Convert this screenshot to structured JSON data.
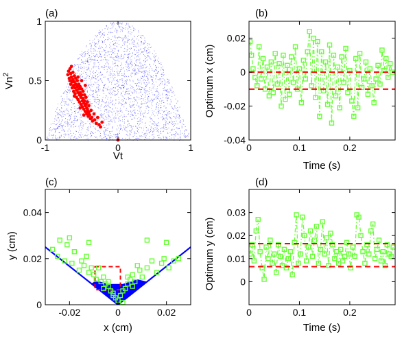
{
  "colors": {
    "red": "#ff0000",
    "green": "#66ff33",
    "blue": "#0000ff",
    "axis": "#000000"
  },
  "panels": {
    "a": {
      "label": "(a)",
      "xlabel": "Vt",
      "ylabel": "Vn",
      "ylabel_sup": "2"
    },
    "b": {
      "label": "(b)",
      "xlabel": "Time (s)",
      "ylabel": "Optimum x (cm)"
    },
    "c": {
      "label": "(c)",
      "xlabel": "x (cm)",
      "ylabel": "y (cm)"
    },
    "d": {
      "label": "(d)",
      "xlabel": "Time (s)",
      "ylabel": "Optimum y (cm)"
    }
  },
  "chart_data": [
    {
      "id": "a",
      "type": "scatter",
      "title": "(a)",
      "xlabel": "Vt",
      "ylabel": "Vn^2",
      "xlim": [
        -1,
        1
      ],
      "ylim": [
        0,
        1
      ],
      "xticks": [
        -1,
        0,
        1
      ],
      "yticks": [
        0,
        0.5,
        1
      ],
      "xticklabels": [
        "-1",
        "0",
        "1"
      ],
      "yticklabels": [
        "0",
        "0.5",
        "1"
      ],
      "background_region": "blue dots filling the area under the curve y = 1 - x^2",
      "series": [
        {
          "color": "red",
          "points": [
            [
              -0.69,
              0.55
            ],
            [
              -0.68,
              0.58
            ],
            [
              -0.67,
              0.52
            ],
            [
              -0.66,
              0.6
            ],
            [
              -0.66,
              0.5
            ],
            [
              -0.65,
              0.56
            ],
            [
              -0.65,
              0.47
            ],
            [
              -0.64,
              0.53
            ],
            [
              -0.64,
              0.62
            ],
            [
              -0.63,
              0.49
            ],
            [
              -0.63,
              0.44
            ],
            [
              -0.62,
              0.57
            ],
            [
              -0.62,
              0.51
            ],
            [
              -0.61,
              0.46
            ],
            [
              -0.61,
              0.41
            ],
            [
              -0.6,
              0.54
            ],
            [
              -0.6,
              0.49
            ],
            [
              -0.59,
              0.44
            ],
            [
              -0.59,
              0.39
            ],
            [
              -0.58,
              0.52
            ],
            [
              -0.58,
              0.47
            ],
            [
              -0.57,
              0.42
            ],
            [
              -0.57,
              0.36
            ],
            [
              -0.56,
              0.5
            ],
            [
              -0.56,
              0.45
            ],
            [
              -0.55,
              0.4
            ],
            [
              -0.55,
              0.34
            ],
            [
              -0.54,
              0.47
            ],
            [
              -0.54,
              0.43
            ],
            [
              -0.53,
              0.38
            ],
            [
              -0.53,
              0.32
            ],
            [
              -0.52,
              0.45
            ],
            [
              -0.52,
              0.4
            ],
            [
              -0.51,
              0.36
            ],
            [
              -0.51,
              0.3
            ],
            [
              -0.5,
              0.43
            ],
            [
              -0.5,
              0.38
            ],
            [
              -0.49,
              0.33
            ],
            [
              -0.49,
              0.28
            ],
            [
              -0.48,
              0.41
            ],
            [
              -0.48,
              0.35
            ],
            [
              -0.47,
              0.31
            ],
            [
              -0.47,
              0.26
            ],
            [
              -0.46,
              0.38
            ],
            [
              -0.46,
              0.33
            ],
            [
              -0.45,
              0.29
            ],
            [
              -0.45,
              0.24
            ],
            [
              -0.44,
              0.36
            ],
            [
              -0.44,
              0.3
            ],
            [
              -0.43,
              0.27
            ],
            [
              -0.43,
              0.22
            ],
            [
              -0.42,
              0.32
            ],
            [
              -0.42,
              0.26
            ],
            [
              -0.41,
              0.24
            ],
            [
              -0.41,
              0.2
            ],
            [
              -0.4,
              0.29
            ],
            [
              -0.4,
              0.23
            ],
            [
              -0.39,
              0.21
            ],
            [
              -0.38,
              0.18
            ],
            [
              -0.37,
              0.25
            ],
            [
              -0.36,
              0.19
            ],
            [
              -0.35,
              0.16
            ],
            [
              -0.33,
              0.22
            ],
            [
              -0.32,
              0.17
            ],
            [
              -0.3,
              0.14
            ],
            [
              -0.28,
              0.19
            ],
            [
              -0.26,
              0.13
            ],
            [
              -0.24,
              0.11
            ],
            [
              -0.22,
              0.15
            ],
            [
              -0.55,
              0.53
            ],
            [
              -0.5,
              0.5
            ],
            [
              -0.45,
              0.46
            ],
            [
              -0.6,
              0.37
            ],
            [
              -0.52,
              0.27
            ],
            [
              -0.47,
              0.21
            ],
            [
              0.0,
              0.0
            ]
          ]
        }
      ]
    },
    {
      "id": "b",
      "type": "line",
      "title": "(b)",
      "xlabel": "Time (s)",
      "ylabel": "Optimum x (cm)",
      "xlim": [
        0,
        0.29
      ],
      "ylim": [
        -0.04,
        0.03
      ],
      "xticks": [
        0,
        0.1,
        0.2
      ],
      "yticks": [
        -0.04,
        -0.02,
        0,
        0.02
      ],
      "xticklabels": [
        "0",
        "0.1",
        "0.2"
      ],
      "yticklabels": [
        "-0.04",
        "-0.02",
        "0",
        "0.02"
      ],
      "hlines": [
        0.0,
        -0.01
      ],
      "series": [
        {
          "color": "green",
          "style": "dash-dot with square markers",
          "x": [
            0.002,
            0.005,
            0.008,
            0.012,
            0.016,
            0.02,
            0.024,
            0.028,
            0.032,
            0.036,
            0.04,
            0.044,
            0.048,
            0.052,
            0.056,
            0.06,
            0.064,
            0.068,
            0.072,
            0.076,
            0.08,
            0.084,
            0.088,
            0.092,
            0.096,
            0.1,
            0.104,
            0.108,
            0.112,
            0.116,
            0.12,
            0.124,
            0.128,
            0.132,
            0.136,
            0.14,
            0.144,
            0.148,
            0.152,
            0.156,
            0.16,
            0.164,
            0.168,
            0.172,
            0.176,
            0.18,
            0.184,
            0.188,
            0.192,
            0.196,
            0.2,
            0.204,
            0.208,
            0.212,
            0.216,
            0.22,
            0.224,
            0.228,
            0.232,
            0.236,
            0.24,
            0.244,
            0.248,
            0.252,
            0.256,
            0.26,
            0.264,
            0.268,
            0.272,
            0.276,
            0.28,
            0.284
          ],
          "y": [
            0.018,
            0.01,
            0.002,
            -0.003,
            -0.008,
            0.015,
            -0.004,
            0.008,
            -0.01,
            0.003,
            -0.014,
            0.006,
            -0.012,
            0.011,
            -0.007,
            0.005,
            -0.02,
            0.01,
            -0.016,
            0.004,
            -0.013,
            0.009,
            -0.006,
            0.015,
            -0.01,
            0.002,
            -0.018,
            0.007,
            -0.004,
            0.012,
            0.024,
            -0.008,
            0.02,
            -0.015,
            0.018,
            -0.026,
            0.012,
            -0.011,
            0.006,
            -0.019,
            0.016,
            -0.03,
            0.01,
            -0.014,
            0.003,
            -0.021,
            0.009,
            -0.006,
            0.014,
            -0.012,
            0.001,
            -0.017,
            -0.026,
            0.008,
            -0.021,
            0.011,
            -0.009,
            -0.004,
            0.006,
            -0.013,
            0.002,
            -0.008,
            -0.018,
            -0.004,
            0.004,
            -0.007,
            0.013,
            0.001,
            0.008,
            -0.003,
            0.005,
            0.0
          ]
        }
      ]
    },
    {
      "id": "c",
      "type": "scatter",
      "title": "(c)",
      "xlabel": "x (cm)",
      "ylabel": "y (cm)",
      "xlim": [
        -0.03,
        0.03
      ],
      "ylim": [
        0,
        0.05
      ],
      "xticks": [
        -0.02,
        0,
        0.02
      ],
      "yticks": [
        0,
        0.02,
        0.04
      ],
      "xticklabels": [
        "-0.02",
        "0",
        "0.02"
      ],
      "yticklabels": [
        "0",
        "0.02",
        "0.04"
      ],
      "v_lines": "blue lines y = 0.833|x| and filled blue region near the origin",
      "dashed_box": {
        "color": "red",
        "x": [
          -0.0095,
          0.001
        ],
        "y": [
          0.0065,
          0.0165
        ]
      },
      "series": [
        {
          "color": "green",
          "marker": "square",
          "x": [
            -0.027,
            -0.025,
            -0.024,
            -0.022,
            -0.021,
            -0.019,
            -0.018,
            -0.016,
            -0.015,
            -0.014,
            -0.013,
            -0.012,
            -0.011,
            -0.01,
            -0.009,
            -0.008,
            -0.007,
            -0.006,
            -0.005,
            -0.004,
            -0.003,
            -0.002,
            -0.001,
            0.0,
            0.001,
            0.002,
            0.003,
            0.004,
            0.005,
            0.006,
            0.007,
            0.008,
            0.009,
            0.01,
            0.012,
            0.014,
            0.016,
            0.018,
            0.019,
            0.021,
            0.023,
            0.025,
            -0.02,
            -0.012,
            0.012,
            0.02,
            -0.006,
            0.006,
            0.002,
            -0.002,
            0.004,
            -0.004
          ],
          "y": [
            0.024,
            0.021,
            0.028,
            0.019,
            0.026,
            0.018,
            0.023,
            0.015,
            0.019,
            0.017,
            0.021,
            0.014,
            0.016,
            0.013,
            0.011,
            0.016,
            0.01,
            0.012,
            0.009,
            0.008,
            0.006,
            0.005,
            0.003,
            0.002,
            0.004,
            0.006,
            0.007,
            0.009,
            0.011,
            0.013,
            0.01,
            0.017,
            0.015,
            0.012,
            0.016,
            0.019,
            0.014,
            0.018,
            0.02,
            0.016,
            0.019,
            0.02,
            0.029,
            0.027,
            0.028,
            0.027,
            0.007,
            0.008,
            0.001,
            0.004,
            0.012,
            0.01
          ]
        }
      ]
    },
    {
      "id": "d",
      "type": "line",
      "title": "(d)",
      "xlabel": "Time (s)",
      "ylabel": "Optimum y (cm)",
      "xlim": [
        0,
        0.29
      ],
      "ylim": [
        -0.01,
        0.04
      ],
      "xticks": [
        0,
        0.1,
        0.2
      ],
      "yticks": [
        0,
        0.01,
        0.02,
        0.03
      ],
      "xticklabels": [
        "0",
        "0.1",
        "0.2"
      ],
      "yticklabels": [
        "0",
        "0.01",
        "0.02",
        "0.03"
      ],
      "hlines": [
        0.0165,
        0.0065
      ],
      "series": [
        {
          "color": "green",
          "style": "dash-dot with square markers",
          "x": [
            0.002,
            0.006,
            0.01,
            0.014,
            0.018,
            0.022,
            0.026,
            0.03,
            0.034,
            0.038,
            0.042,
            0.046,
            0.05,
            0.054,
            0.058,
            0.062,
            0.066,
            0.07,
            0.074,
            0.078,
            0.082,
            0.086,
            0.09,
            0.094,
            0.098,
            0.102,
            0.106,
            0.11,
            0.114,
            0.118,
            0.122,
            0.126,
            0.13,
            0.134,
            0.138,
            0.142,
            0.146,
            0.15,
            0.154,
            0.158,
            0.162,
            0.166,
            0.17,
            0.174,
            0.178,
            0.182,
            0.186,
            0.19,
            0.194,
            0.198,
            0.202,
            0.206,
            0.21,
            0.214,
            0.218,
            0.222,
            0.226,
            0.23,
            0.234,
            0.238,
            0.242,
            0.246,
            0.25,
            0.254,
            0.258,
            0.262,
            0.266,
            0.27,
            0.274,
            0.278,
            0.282,
            0.286
          ],
          "y": [
            0.012,
            0.016,
            0.009,
            0.022,
            0.027,
            0.013,
            0.006,
            0.001,
            0.015,
            0.01,
            0.018,
            0.008,
            0.012,
            0.004,
            0.016,
            0.011,
            0.007,
            0.014,
            0.006,
            0.01,
            0.013,
            0.003,
            0.017,
            0.029,
            0.008,
            0.012,
            0.028,
            0.02,
            0.009,
            0.015,
            0.022,
            0.011,
            0.018,
            0.024,
            0.008,
            0.014,
            0.026,
            0.012,
            0.019,
            0.007,
            0.021,
            0.016,
            0.01,
            0.013,
            0.008,
            0.014,
            0.009,
            0.011,
            0.017,
            0.012,
            0.006,
            0.015,
            0.011,
            0.029,
            0.028,
            0.02,
            0.013,
            0.008,
            0.016,
            0.012,
            0.022,
            0.025,
            0.01,
            0.014,
            0.018,
            0.009,
            0.013,
            0.007,
            0.016,
            0.012,
            0.011,
            0.015
          ]
        }
      ]
    }
  ]
}
